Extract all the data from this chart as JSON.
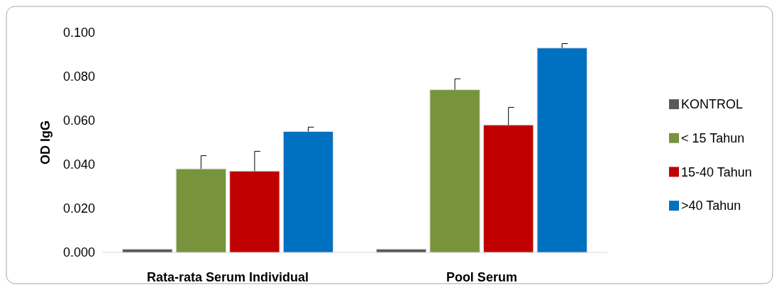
{
  "chart_data": {
    "type": "bar",
    "ylabel": "OD IgG",
    "categories": [
      "Rata-rata Serum Individual",
      "Pool Serum"
    ],
    "series": [
      {
        "name": "KONTROL",
        "color": "#595959",
        "values": [
          0.0015,
          0.0015
        ]
      },
      {
        "name": "< 15 Tahun",
        "color": "#77933c",
        "values": [
          0.038,
          0.074
        ],
        "errors": [
          [
            0.038,
            0.044
          ],
          [
            0.074,
            0.079
          ]
        ]
      },
      {
        "name": "15-40 Tahun",
        "color": "#c00000",
        "values": [
          0.037,
          0.058
        ],
        "errors": [
          [
            0.037,
            0.046
          ],
          [
            0.058,
            0.066
          ]
        ]
      },
      {
        "name": ">40 Tahun",
        "color": "#0070c0",
        "values": [
          0.055,
          0.093
        ],
        "errors": [
          [
            0.055,
            0.057
          ],
          [
            0.093,
            0.095
          ]
        ]
      }
    ],
    "ylim": [
      0,
      0.1
    ],
    "yticks": [
      {
        "value": 0,
        "label": "0.000"
      },
      {
        "value": 0.02,
        "label": "0.020"
      },
      {
        "value": 0.04,
        "label": "0.040"
      },
      {
        "value": 0.06,
        "label": "0.060"
      },
      {
        "value": 0.08,
        "label": "0.080"
      },
      {
        "value": 0.1,
        "label": "0.100"
      }
    ],
    "grid": false,
    "legend": "right"
  }
}
